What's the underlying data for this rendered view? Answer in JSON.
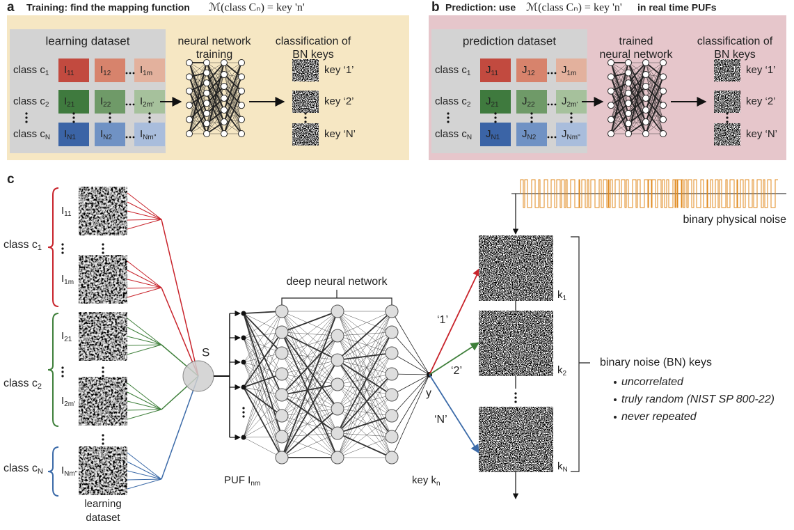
{
  "panel_a": {
    "label": "a",
    "title": "Training: find the mapping function",
    "formula": "ℳ(class Cₙ) = key 'n'",
    "dataset_title": "learning dataset",
    "network_title": [
      "neural network",
      "training"
    ],
    "output_title": [
      "classification of",
      "BN keys"
    ],
    "rows": [
      {
        "class": {
          "base": "class c",
          "sub": "1"
        },
        "cells": [
          {
            "base": "I",
            "sub": "11"
          },
          {
            "base": "I",
            "sub": "12"
          },
          {
            "base": "I",
            "sub": "1m"
          }
        ],
        "key": "key ‘1’"
      },
      {
        "class": {
          "base": "class c",
          "sub": "2"
        },
        "cells": [
          {
            "base": "I",
            "sub": "21"
          },
          {
            "base": "I",
            "sub": "22"
          },
          {
            "base": "I",
            "sub": "2m'"
          }
        ],
        "key": "key ‘2’"
      },
      {
        "class": {
          "base": "class c",
          "sub": "N"
        },
        "cells": [
          {
            "base": "I",
            "sub": "N1"
          },
          {
            "base": "I",
            "sub": "N2"
          },
          {
            "base": "I",
            "sub": "Nm''"
          }
        ],
        "key": "key ‘N’"
      }
    ]
  },
  "panel_b": {
    "label": "b",
    "title": "Prediction: use",
    "formula": "ℳ(class Cₙ) = key 'n'",
    "title_end": "in real time PUFs",
    "dataset_title": "prediction dataset",
    "network_title": [
      "trained",
      "neural network"
    ],
    "output_title": [
      "classification of",
      "BN keys"
    ],
    "rows": [
      {
        "class": {
          "base": "class c",
          "sub": "1"
        },
        "cells": [
          {
            "base": "J",
            "sub": "11"
          },
          {
            "base": "J",
            "sub": "12"
          },
          {
            "base": "J",
            "sub": "1m"
          }
        ],
        "key": "key ‘1’"
      },
      {
        "class": {
          "base": "class c",
          "sub": "2"
        },
        "cells": [
          {
            "base": "J",
            "sub": "21"
          },
          {
            "base": "J",
            "sub": "22"
          },
          {
            "base": "J",
            "sub": "2m'"
          }
        ],
        "key": "key ‘2’"
      },
      {
        "class": {
          "base": "class c",
          "sub": "N"
        },
        "cells": [
          {
            "base": "J",
            "sub": "N1"
          },
          {
            "base": "J",
            "sub": "N2"
          },
          {
            "base": "J",
            "sub": "Nm''"
          }
        ],
        "key": "key ‘N’"
      }
    ]
  },
  "panel_c": {
    "label": "c",
    "classes": [
      {
        "base": "class c",
        "sub": "1"
      },
      {
        "base": "class c",
        "sub": "2"
      },
      {
        "base": "class c",
        "sub": "N"
      }
    ],
    "images": [
      {
        "base": "I",
        "sub": "11"
      },
      {
        "base": "I",
        "sub": "1m"
      },
      {
        "base": "I",
        "sub": "21"
      },
      {
        "base": "I",
        "sub": "2m'"
      },
      {
        "base": "I",
        "sub": "Nm''"
      }
    ],
    "dataset_title": [
      "learning",
      "dataset"
    ],
    "sum_label": "S",
    "network_title": "deep neural network",
    "input_label": {
      "base": "PUF I",
      "sub": "nm"
    },
    "output_label": "y",
    "key_label": {
      "base": "key k",
      "sub": "n"
    },
    "branches": [
      "‘1’",
      "‘2’",
      "‘N’"
    ],
    "keys": [
      {
        "base": "k",
        "sub": "1"
      },
      {
        "base": "k",
        "sub": "2"
      },
      {
        "base": "k",
        "sub": "N"
      }
    ],
    "noise_label": "binary physical noise",
    "bn_title": "binary noise (BN) keys",
    "bn_properties": [
      "uncorrelated",
      "truly random (NIST SP 800-22)",
      "never repeated"
    ]
  }
}
